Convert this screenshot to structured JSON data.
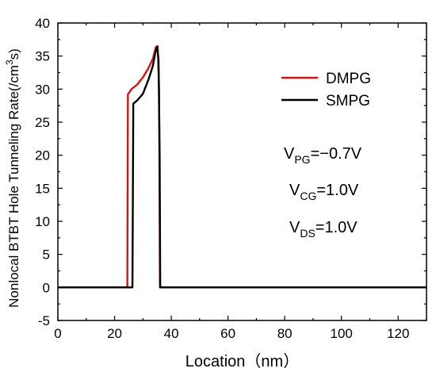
{
  "chart_data": {
    "type": "line",
    "xlabel": "Location（nm）",
    "ylabel_main": "Nonlocal BTBT Hole Tunneling Rate(/cm",
    "ylabel_sup": "3",
    "ylabel_end": "s)",
    "xlim": [
      0,
      130
    ],
    "ylim": [
      -5,
      40
    ],
    "xticks": [
      "0",
      "20",
      "40",
      "60",
      "80",
      "100",
      "120"
    ],
    "yticks": [
      "-5",
      "0",
      "5",
      "10",
      "15",
      "20",
      "25",
      "30",
      "35",
      "40"
    ],
    "legend_position": "top-right",
    "series": [
      {
        "name": "DMPG",
        "color": "#e01010",
        "points": [
          [
            0,
            0
          ],
          [
            24.5,
            0
          ],
          [
            24.7,
            29.2
          ],
          [
            26,
            30.0
          ],
          [
            28,
            30.7
          ],
          [
            30,
            31.8
          ],
          [
            32,
            33.2
          ],
          [
            33.5,
            34.6
          ],
          [
            34.6,
            36.4
          ],
          [
            35.2,
            36.5
          ],
          [
            35.7,
            30
          ],
          [
            36.0,
            0
          ],
          [
            130,
            0
          ]
        ]
      },
      {
        "name": "SMPG",
        "color": "#000000",
        "points": [
          [
            0,
            0
          ],
          [
            26.3,
            0
          ],
          [
            26.6,
            27.8
          ],
          [
            28,
            28.3
          ],
          [
            30,
            29.3
          ],
          [
            32,
            31.5
          ],
          [
            33.5,
            33.5
          ],
          [
            34.4,
            35.6
          ],
          [
            35.0,
            36.4
          ],
          [
            35.5,
            34.5
          ],
          [
            35.9,
            20
          ],
          [
            36.1,
            0
          ],
          [
            130,
            0
          ]
        ]
      }
    ],
    "annotations": [
      {
        "main": "V",
        "sub": "PG",
        "rest": "=−0.7V"
      },
      {
        "main": "V",
        "sub": "CG",
        "rest": "=1.0V"
      },
      {
        "main": "V",
        "sub": "DS",
        "rest": "=1.0V"
      }
    ]
  }
}
